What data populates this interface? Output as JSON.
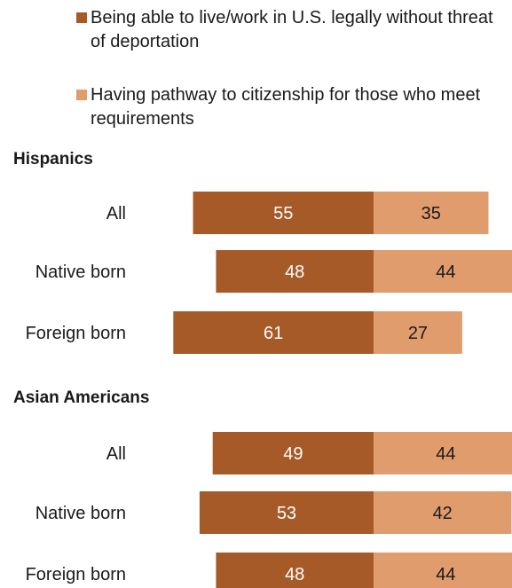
{
  "legend": [
    {
      "label": "Being able to live/work in U.S. legally without threat of deportation",
      "color": "#a65a28"
    },
    {
      "label": "Having pathway to citizenship for those who meet requirements",
      "color": "#e09c6c"
    }
  ],
  "chart_data": {
    "type": "bar",
    "orientation": "horizontal",
    "stacked": "diverging",
    "groups": [
      {
        "title": "Hispanics",
        "categories": [
          "All",
          "Native born",
          "Foreign born"
        ],
        "series": [
          {
            "name": "Being able to live/work in U.S. legally without threat of deportation",
            "values": [
              55,
              48,
              61
            ]
          },
          {
            "name": "Having pathway to citizenship for those who meet requirements",
            "values": [
              35,
              44,
              27
            ]
          }
        ]
      },
      {
        "title": "Asian Americans",
        "categories": [
          "All",
          "Native born",
          "Foreign born"
        ],
        "series": [
          {
            "name": "Being able to live/work in U.S. legally without threat of deportation",
            "values": [
              49,
              53,
              48
            ]
          },
          {
            "name": "Having pathway to citizenship for those who meet requirements",
            "values": [
              44,
              42,
              44
            ]
          }
        ]
      }
    ],
    "colors": [
      "#a65a28",
      "#e09c6c"
    ],
    "label_colors": [
      "#ffffff",
      "#1a1a1a"
    ],
    "grid": false,
    "legend_position": "top"
  }
}
